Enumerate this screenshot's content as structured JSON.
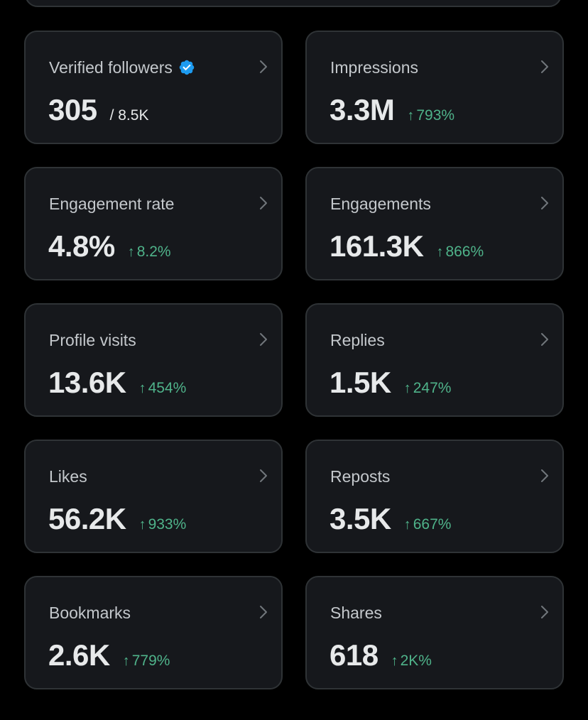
{
  "colors": {
    "background": "#000000",
    "card": "#16181c",
    "border": "#2f3336",
    "label": "#c4c8cc",
    "value": "#e7e9ea",
    "positive": "#4fb38a",
    "verified": "#1d9bf0"
  },
  "metrics": [
    {
      "label": "Verified followers",
      "value": "305",
      "total": "/ 8.5K",
      "verified": true
    },
    {
      "label": "Impressions",
      "value": "3.3M",
      "change": "793%"
    },
    {
      "label": "Engagement rate",
      "value": "4.8%",
      "change": "8.2%"
    },
    {
      "label": "Engagements",
      "value": "161.3K",
      "change": "866%"
    },
    {
      "label": "Profile visits",
      "value": "13.6K",
      "change": "454%"
    },
    {
      "label": "Replies",
      "value": "1.5K",
      "change": "247%"
    },
    {
      "label": "Likes",
      "value": "56.2K",
      "change": "933%"
    },
    {
      "label": "Reposts",
      "value": "3.5K",
      "change": "667%"
    },
    {
      "label": "Bookmarks",
      "value": "2.6K",
      "change": "779%"
    },
    {
      "label": "Shares",
      "value": "618",
      "change": "2K%"
    }
  ],
  "icons": {
    "arrow_up": "↑",
    "chevron": "chevron-right-icon",
    "verified": "verified-badge-icon"
  }
}
